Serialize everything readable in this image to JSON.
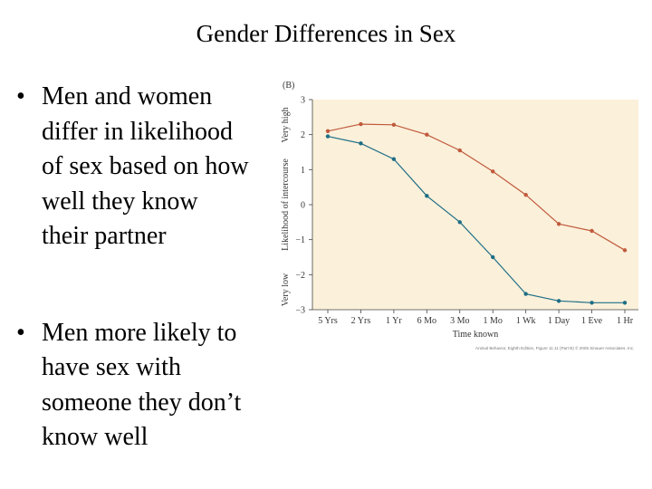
{
  "title": "Gender Differences in Sex",
  "bullets": [
    "Men and women differ in likelihood of sex based on how well they know their partner",
    "Men more likely to have sex with someone they don’t know well"
  ],
  "colors": {
    "panel": "#fbf0da",
    "men": "#c05a3c",
    "women": "#1e6e86",
    "axis": "#444444"
  },
  "chart_data": {
    "type": "line",
    "panel_label": "(B)",
    "xlabel": "Time known",
    "ylabel": "Likelihood of intercourse",
    "ylabel_high": "Very high",
    "ylabel_low": "Very low",
    "categories": [
      "5 Yrs",
      "2 Yrs",
      "1 Yr",
      "6 Mo",
      "3 Mo",
      "1 Mo",
      "1 Wk",
      "1 Day",
      "1 Eve",
      "1 Hr"
    ],
    "ylim": [
      -3,
      3
    ],
    "yticks": [
      "3",
      "2",
      "1",
      "0",
      "−1",
      "−2",
      "−3"
    ],
    "grid": false,
    "series": [
      {
        "color": "#c05a3c",
        "values": [
          2.1,
          2.3,
          2.28,
          2.0,
          1.55,
          0.95,
          0.28,
          -0.55,
          -0.75,
          -1.3
        ]
      },
      {
        "color": "#1e6e86",
        "values": [
          1.95,
          1.75,
          1.3,
          0.25,
          -0.5,
          -1.5,
          -2.55,
          -2.75,
          -2.8,
          -2.8
        ]
      }
    ],
    "credit": "Animal Behavior, Eighth Edition, Figure 11.11 (Part B) © 2005 Sinauer Associates, Inc."
  }
}
